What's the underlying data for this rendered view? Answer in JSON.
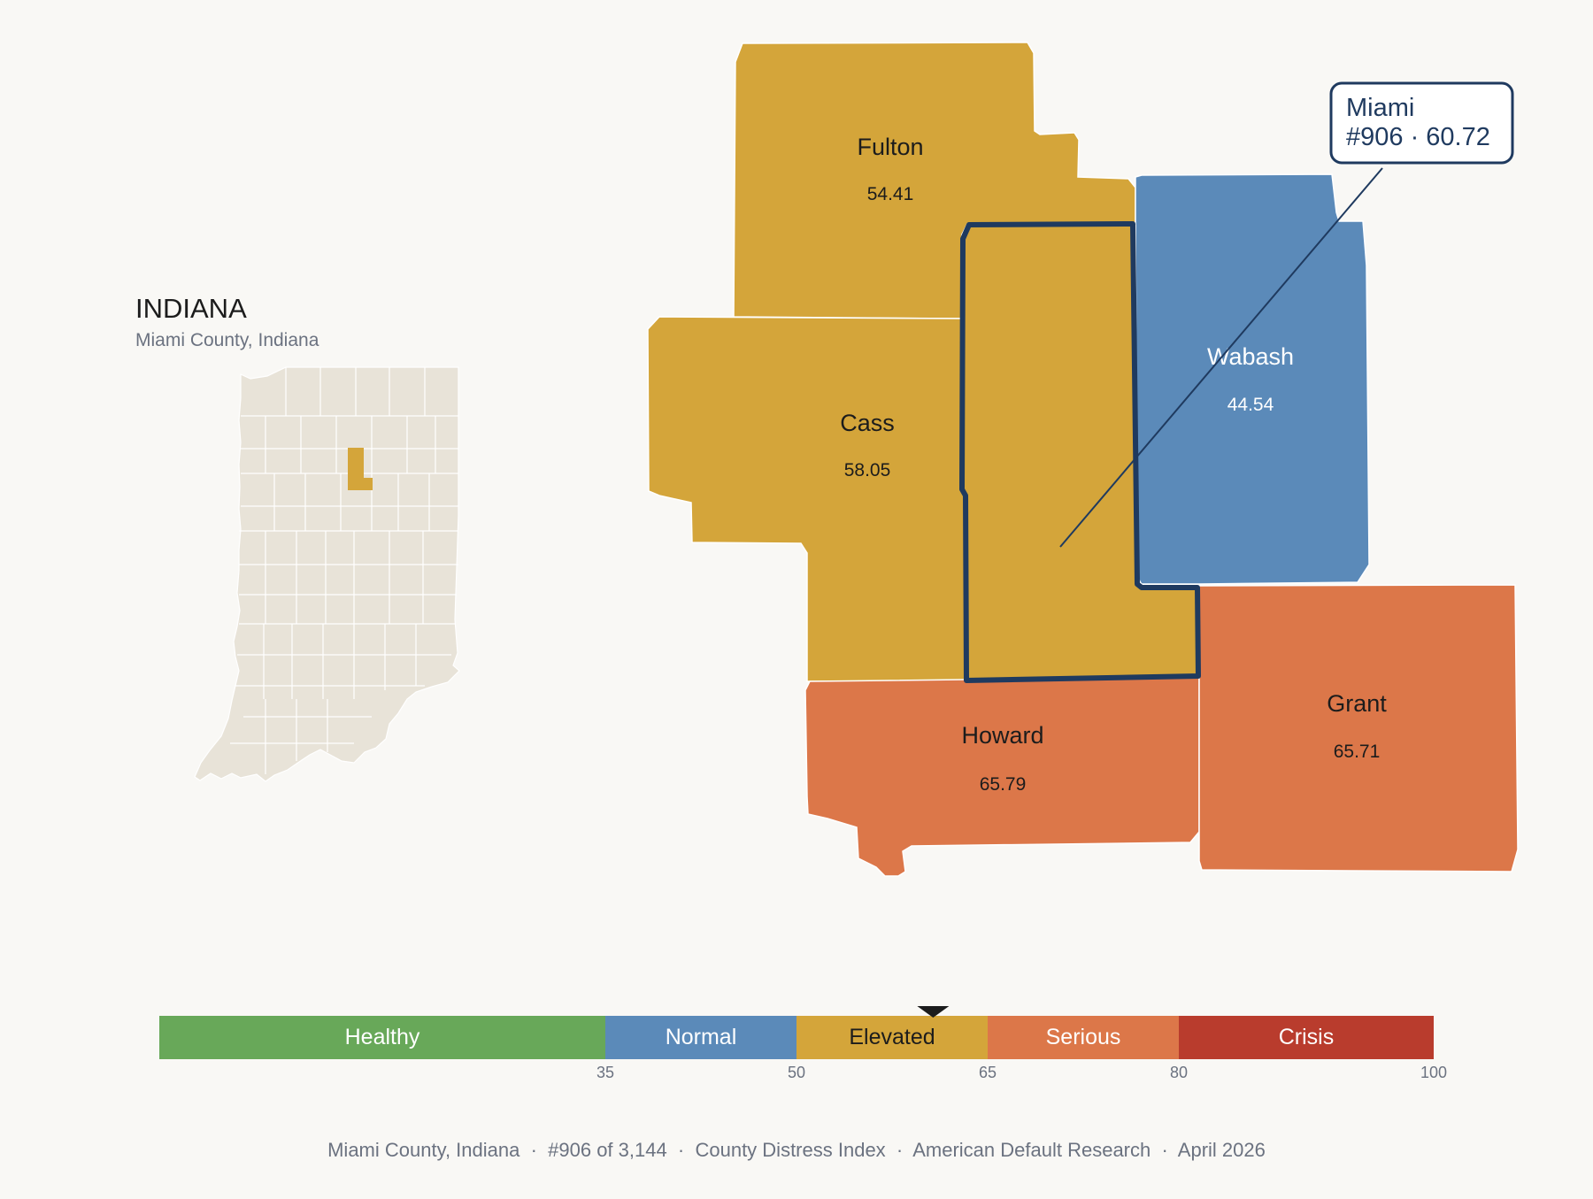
{
  "state": {
    "title": "INDIANA",
    "subtitle": "Miami County, Indiana",
    "highlight_color": "#d4a53a",
    "base_color": "#e8e3d8"
  },
  "counties": {
    "fulton": {
      "name": "Fulton",
      "value": "54.41",
      "category": "Elevated"
    },
    "cass": {
      "name": "Cass",
      "value": "58.05",
      "category": "Elevated"
    },
    "wabash": {
      "name": "Wabash",
      "value": "44.54",
      "category": "Normal"
    },
    "howard": {
      "name": "Howard",
      "value": "65.79",
      "category": "Serious"
    },
    "grant": {
      "name": "Grant",
      "value": "65.71",
      "category": "Serious"
    },
    "miami": {
      "name": "Miami",
      "value": "60.72",
      "category": "Elevated"
    }
  },
  "callout": {
    "line1": "Miami",
    "line2": "#906 · 60.72"
  },
  "legend": {
    "pointer_value": 60.72,
    "segments": [
      {
        "label": "Healthy",
        "from": 0,
        "to": 35,
        "color": "#68a859",
        "text_color": "#ffffff"
      },
      {
        "label": "Normal",
        "from": 35,
        "to": 50,
        "color": "#5b8ab9",
        "text_color": "#ffffff"
      },
      {
        "label": "Elevated",
        "from": 50,
        "to": 65,
        "color": "#d4a53a",
        "text_color": "#1c1c1c"
      },
      {
        "label": "Serious",
        "from": 65,
        "to": 80,
        "color": "#dc7749",
        "text_color": "#ffffff"
      },
      {
        "label": "Crisis",
        "from": 80,
        "to": 100,
        "color": "#b93c2d",
        "text_color": "#ffffff"
      }
    ],
    "ticks": [
      "35",
      "50",
      "65",
      "80",
      "100"
    ]
  },
  "colors": {
    "elevated": "#d4a53a",
    "normal": "#5b8ab9",
    "serious": "#dc7749",
    "outline": "#1f3a5f"
  },
  "footer": {
    "text": "Miami County, Indiana  ·  #906 of 3,144  ·  County Distress Index  ·  American Default Research  ·  April 2026"
  }
}
